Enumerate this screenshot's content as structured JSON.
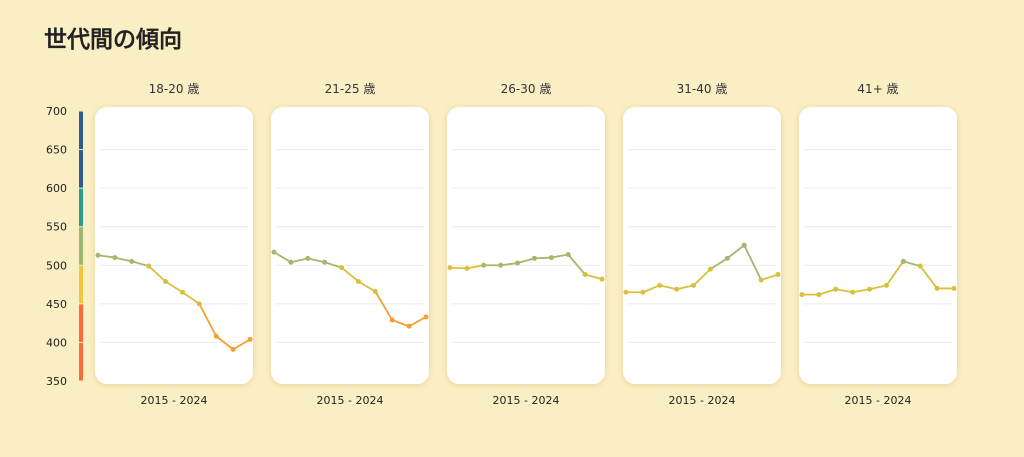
{
  "title": "世代間の傾向",
  "chart_data": {
    "type": "line",
    "title": "世代間の傾向",
    "ylim": [
      350,
      700
    ],
    "yticks": [
      700,
      650,
      600,
      550,
      500,
      450,
      400,
      350
    ],
    "scale_bands": [
      {
        "from": 650,
        "to": 700,
        "color": "#2e5f8a"
      },
      {
        "from": 600,
        "to": 650,
        "color": "#2e5f8a"
      },
      {
        "from": 550,
        "to": 600,
        "color": "#2a9d8f"
      },
      {
        "from": 500,
        "to": 550,
        "color": "#9cb86e"
      },
      {
        "from": 450,
        "to": 500,
        "color": "#f0c63e"
      },
      {
        "from": 400,
        "to": 450,
        "color": "#ff6b3d"
      },
      {
        "from": 350,
        "to": 400,
        "color": "#ff6b3d"
      }
    ],
    "panels": [
      {
        "label": "18-20 歳",
        "xlabel": "2015 - 2024",
        "values": [
          513,
          510,
          505,
          499,
          479,
          465,
          450,
          408,
          391,
          404
        ]
      },
      {
        "label": "21-25 歳",
        "xlabel": "2015 - 2024",
        "values": [
          517,
          504,
          509,
          504,
          497,
          479,
          466,
          429,
          421,
          433
        ]
      },
      {
        "label": "26-30 歳",
        "xlabel": "2015 - 2024",
        "values": [
          497,
          496,
          500,
          500,
          503,
          509,
          510,
          514,
          488,
          482
        ]
      },
      {
        "label": "31-40 歳",
        "xlabel": "2015 - 2024",
        "values": [
          465,
          465,
          474,
          469,
          474,
          495,
          509,
          526,
          481,
          488
        ]
      },
      {
        "label": "41+ 歳",
        "xlabel": "2015 - 2024",
        "values": [
          462,
          462,
          469,
          465,
          469,
          474,
          505,
          499,
          470,
          470
        ]
      }
    ],
    "line_colors": {
      "high": "#a3b86c",
      "mid": "#d8c03e",
      "low": "#f5a030"
    }
  }
}
